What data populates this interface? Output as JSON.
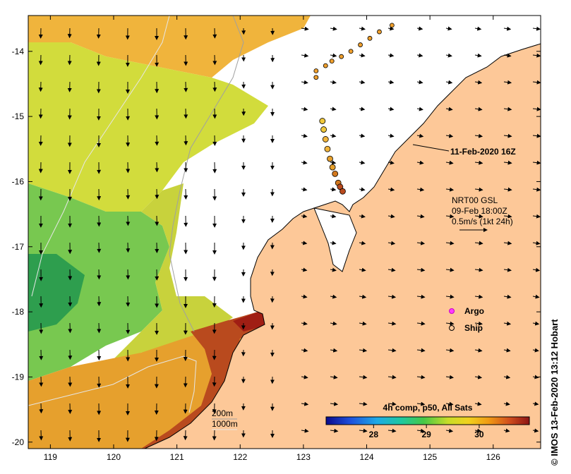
{
  "map": {
    "lon_ticks": [
      "119",
      "120",
      "121",
      "122",
      "123",
      "124",
      "125",
      "126"
    ],
    "lat_ticks": [
      "-14",
      "-15",
      "-16",
      "-17",
      "-18",
      "-19",
      "-20"
    ],
    "lon_range": [
      118.65,
      126.75
    ],
    "lat_range": [
      -20.1,
      -13.45
    ],
    "track_label": "11-Feb-2020 16Z",
    "current_info": [
      "NRT00 GSL",
      "09-Feb 18:00Z",
      "0.5m/s (1kt 24h)"
    ],
    "legend": {
      "argo": "Argo",
      "ship": "Ship"
    },
    "isobaths": [
      "200m",
      "1000m"
    ],
    "colorbar": {
      "title": "4h comp, p50, All Sats",
      "ticks": [
        "28",
        "29",
        "30"
      ],
      "range": [
        27.1,
        30.95
      ]
    },
    "credit": "IMOS 13-Feb-2020 13:12 Hobart",
    "copyright_symbol": "©",
    "colors": {
      "land": "#fdc898",
      "warm": "#a01e14",
      "cool": "#2e9e4e"
    }
  },
  "chart_data": {
    "type": "map",
    "ship_track": [
      {
        "lon": 124.4,
        "lat": -13.6
      },
      {
        "lon": 124.2,
        "lat": -13.7
      },
      {
        "lon": 124.05,
        "lat": -13.8
      },
      {
        "lon": 123.9,
        "lat": -13.9
      },
      {
        "lon": 123.75,
        "lat": -14.0
      },
      {
        "lon": 123.6,
        "lat": -14.08
      },
      {
        "lon": 123.45,
        "lat": -14.15
      },
      {
        "lon": 123.35,
        "lat": -14.22
      },
      {
        "lon": 123.2,
        "lat": -14.3
      },
      {
        "lon": 123.2,
        "lat": -14.4
      },
      {
        "lon": 123.3,
        "lat": -15.07
      },
      {
        "lon": 123.32,
        "lat": -15.2
      },
      {
        "lon": 123.35,
        "lat": -15.35
      },
      {
        "lon": 123.38,
        "lat": -15.5
      },
      {
        "lon": 123.42,
        "lat": -15.65
      },
      {
        "lon": 123.46,
        "lat": -15.78
      },
      {
        "lon": 123.5,
        "lat": -15.88
      },
      {
        "lon": 123.55,
        "lat": -16.02
      },
      {
        "lon": 123.58,
        "lat": -16.08
      },
      {
        "lon": 123.62,
        "lat": -16.15
      }
    ]
  }
}
